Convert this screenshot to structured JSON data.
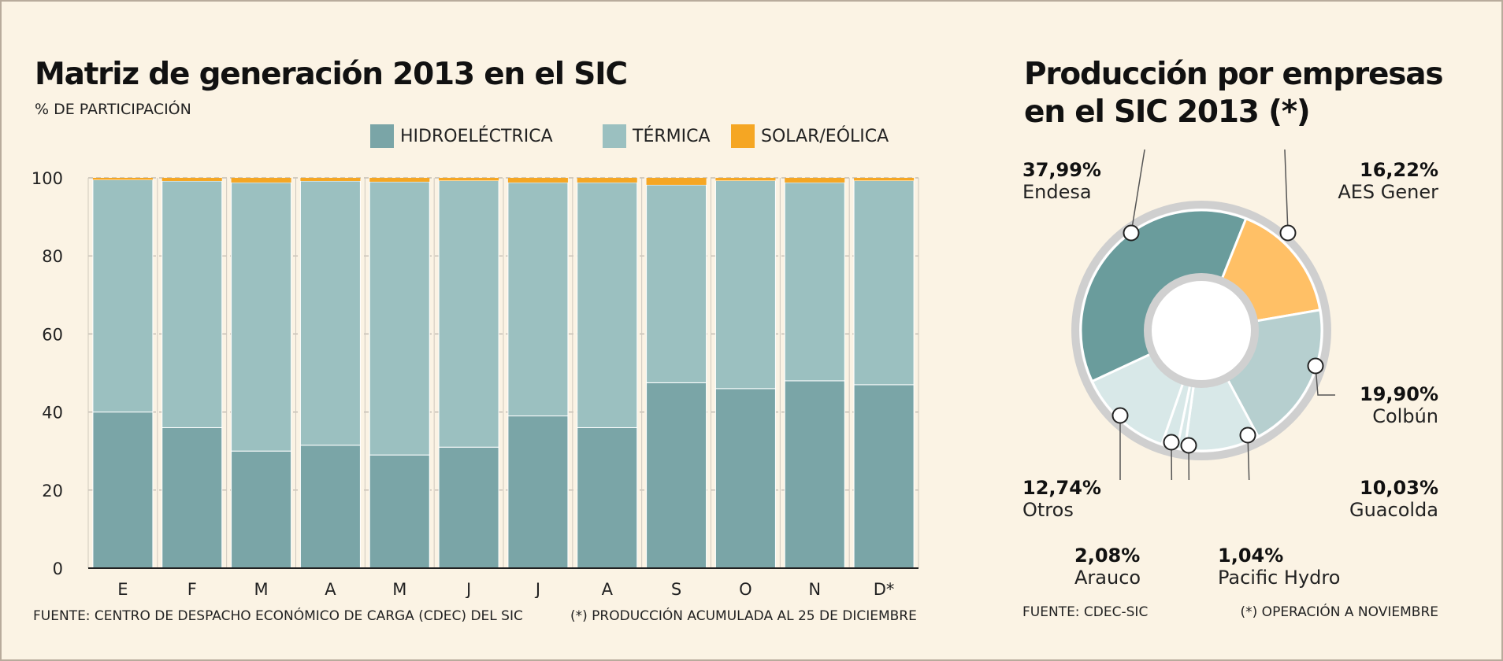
{
  "left_chart": {
    "title": "Matriz de generación 2013 en el SIC",
    "subtitle": "% DE PARTICIPACIÓN",
    "footnote_source": "FUENTE: CENTRO DE DESPACHO ECONÓMICO DE CARGA (CDEC) DEL SIC",
    "footnote_note": "(*) PRODUCCIÓN ACUMULADA AL 25 DE DICIEMBRE"
  },
  "right_chart": {
    "title_line1": "Producción por empresas",
    "title_line2": "en el SIC 2013 (*)",
    "footnote_source": "FUENTE: CDEC-SIC",
    "footnote_note": "(*) OPERACIÓN A NOVIEMBRE"
  },
  "colors": {
    "hidro": "#7aa5a7",
    "termica": "#9bc0c0",
    "solar": "#f5a623",
    "background": "#fbf3e4",
    "endesa": "#6a9c9c",
    "aes": "#ffc066",
    "colbun": "#b6cfcf",
    "light_slices": "#d8e8e8"
  },
  "chart_data": [
    {
      "type": "bar",
      "stacked": true,
      "categories": [
        "E",
        "F",
        "M",
        "A",
        "M",
        "J",
        "J",
        "A",
        "S",
        "O",
        "N",
        "D*"
      ],
      "series": [
        {
          "name": "HIDROELÉCTRICA",
          "values": [
            40,
            36,
            30,
            31.5,
            29,
            31,
            39,
            36,
            47.5,
            46,
            48,
            47
          ]
        },
        {
          "name": "TÉRMICA",
          "values": [
            59.5,
            63.2,
            68.8,
            67.7,
            70,
            68.3,
            59.8,
            62.8,
            50.7,
            53.3,
            50.8,
            52.3
          ]
        },
        {
          "name": "SOLAR/EÓLICA",
          "values": [
            0.5,
            0.8,
            1.2,
            0.8,
            1.0,
            0.7,
            1.2,
            1.2,
            1.8,
            0.7,
            1.2,
            0.7
          ]
        }
      ],
      "yticks": [
        "0",
        "20",
        "40",
        "60",
        "80",
        "100"
      ],
      "ylim": [
        0,
        100
      ],
      "grid": true,
      "legend": "top"
    },
    {
      "type": "pie",
      "donut": true,
      "slices": [
        {
          "label": "Endesa",
          "value": 37.99,
          "value_label": "37,99%"
        },
        {
          "label": "AES Gener",
          "value": 16.22,
          "value_label": "16,22%"
        },
        {
          "label": "Colbún",
          "value": 19.9,
          "value_label": "19,90%"
        },
        {
          "label": "Guacolda",
          "value": 10.03,
          "value_label": "10,03%"
        },
        {
          "label": "Pacific Hydro",
          "value": 1.04,
          "value_label": "1,04%"
        },
        {
          "label": "Arauco",
          "value": 2.08,
          "value_label": "2,08%"
        },
        {
          "label": "Otros",
          "value": 12.74,
          "value_label": "12,74%"
        }
      ]
    }
  ]
}
